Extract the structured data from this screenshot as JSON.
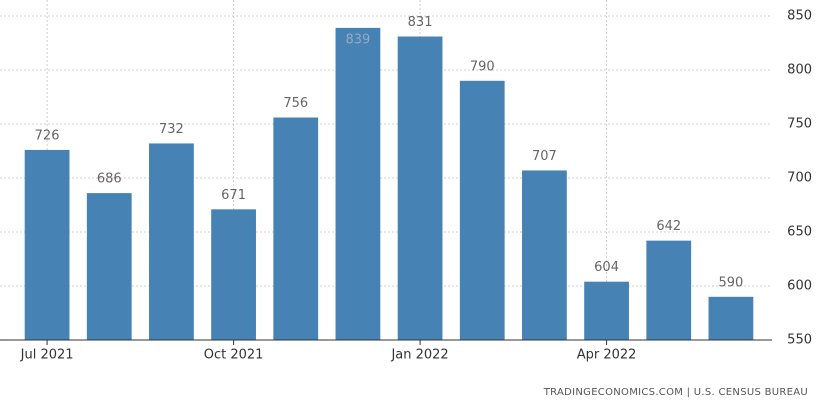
{
  "chart_data": {
    "type": "bar",
    "categories": [
      "Jul 2021",
      null,
      null,
      "Oct 2021",
      null,
      null,
      "Jan 2022",
      null,
      null,
      "Apr 2022",
      null,
      null
    ],
    "values": [
      726,
      686,
      732,
      671,
      756,
      839,
      831,
      790,
      707,
      604,
      642,
      590
    ],
    "color": "#4682b4",
    "ylim": [
      550,
      850
    ],
    "yticks": [
      550,
      600,
      650,
      700,
      750,
      800,
      850
    ],
    "grid": true,
    "y_axis_side": "right",
    "source": "TRADINGECONOMICS.COM | U.S. CENSUS BUREAU"
  }
}
